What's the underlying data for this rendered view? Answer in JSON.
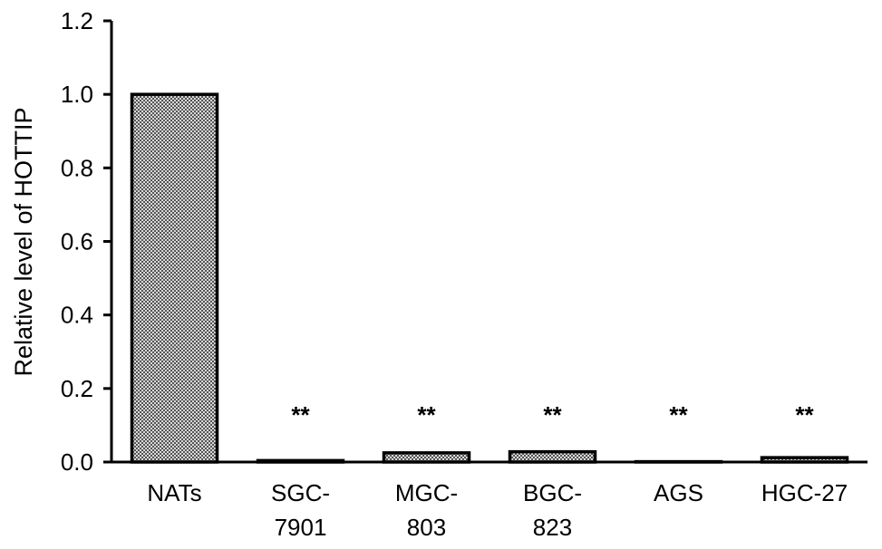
{
  "chart_data": {
    "type": "bar",
    "title": "",
    "xlabel": "",
    "ylabel": "Relative level of HOTTIP",
    "ylim": [
      0,
      1.2
    ],
    "yticks": [
      "0.0",
      "0.2",
      "0.4",
      "0.6",
      "0.8",
      "1.0",
      "1.2"
    ],
    "categories": [
      [
        "NATs"
      ],
      [
        "SGC-",
        "7901"
      ],
      [
        "MGC-",
        "803"
      ],
      [
        "BGC-",
        "823"
      ],
      [
        "AGS"
      ],
      [
        "HGC-27"
      ]
    ],
    "values": [
      1.0,
      0.004,
      0.025,
      0.028,
      0.001,
      0.012
    ],
    "significance": [
      "",
      "**",
      "**",
      "**",
      "**",
      "**"
    ],
    "grid": false,
    "bar_fill": "crosshatch gray",
    "bar_stroke": "#000000"
  }
}
